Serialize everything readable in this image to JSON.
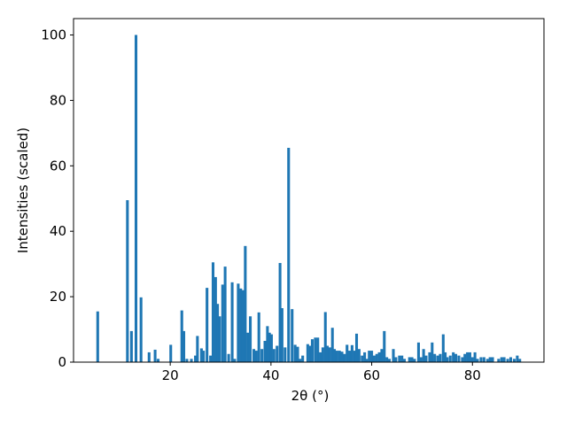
{
  "chart_data": {
    "type": "bar",
    "xlabel": "2θ (°)",
    "ylabel": "Intensities (scaled)",
    "color": "#1f77b4",
    "x": [
      5.6,
      11.5,
      12.3,
      13.2,
      14.2,
      15.8,
      17,
      17.6,
      20.1,
      22.3,
      22.7,
      23.3,
      24.2,
      25,
      25.4,
      26.2,
      26.6,
      27.3,
      28,
      28.5,
      29,
      29.4,
      29.8,
      30.4,
      30.9,
      31.6,
      32.3,
      32.8,
      33.5,
      34,
      34.4,
      34.9,
      35.4,
      35.9,
      36.6,
      37.1,
      37.6,
      38.2,
      38.8,
      39.3,
      39.7,
      40.1,
      40.6,
      41.2,
      41.8,
      42.2,
      42.8,
      43.5,
      44.2,
      44.8,
      45.3,
      45.8,
      46.3,
      47.3,
      47.8,
      48.2,
      48.8,
      49.3,
      49.8,
      50.3,
      50.8,
      51.2,
      51.7,
      52.2,
      52.6,
      53.1,
      53.6,
      54.1,
      54.6,
      55.1,
      55.6,
      56.1,
      56.6,
      57,
      57.5,
      58.1,
      58.6,
      59,
      59.5,
      60,
      60.5,
      61,
      61.5,
      62,
      62.5,
      63,
      63.5,
      64.3,
      64.8,
      65.5,
      66,
      66.5,
      67.5,
      68,
      68.5,
      69.3,
      69.8,
      70.3,
      70.8,
      71.5,
      72,
      72.5,
      73.1,
      73.6,
      74.2,
      74.6,
      75,
      75.6,
      76.2,
      76.7,
      77.3,
      78,
      78.5,
      79,
      79.5,
      80,
      80.5,
      81,
      81.7,
      82.3,
      83,
      83.5,
      84,
      85.2,
      85.8,
      86.3,
      87,
      87.6,
      88.3,
      88.9,
      89.4
    ],
    "values": [
      15.5,
      49.5,
      9.5,
      100,
      19.8,
      3,
      3.8,
      1,
      5.3,
      15.8,
      9.5,
      1,
      1,
      2,
      8,
      4.2,
      3.5,
      22.7,
      2,
      30.5,
      26,
      17.8,
      14,
      23.7,
      29.2,
      2.5,
      24.4,
      1,
      24,
      22.5,
      22,
      35.5,
      9,
      14,
      4,
      3.5,
      15.2,
      4,
      6.5,
      11,
      9,
      8.5,
      4,
      5,
      30.3,
      16.5,
      4.5,
      65.5,
      16.2,
      5.3,
      4.7,
      1,
      2,
      5.5,
      5,
      7,
      7.5,
      7.5,
      3,
      4.5,
      15.3,
      5,
      4.5,
      10.5,
      4,
      3.5,
      3.5,
      3.2,
      2.5,
      5.3,
      3.5,
      5.2,
      3.5,
      8.7,
      4,
      2,
      3,
      1,
      3.5,
      3.5,
      2,
      2.5,
      3,
      4,
      9.5,
      1.5,
      1,
      4,
      1.5,
      2,
      2,
      1,
      1.5,
      1.5,
      1,
      6,
      1.5,
      4,
      2,
      3,
      6,
      2.5,
      2,
      2.5,
      8.5,
      3,
      1.5,
      2,
      3,
      2.5,
      2,
      1.5,
      2.5,
      3,
      3,
      1.5,
      3,
      1,
      1.5,
      1.5,
      1,
      1.5,
      1.5,
      1,
      1.5,
      1.5,
      1,
      1.5,
      1,
      2,
      1
    ],
    "xlim": [
      0.8,
      94.2
    ],
    "ylim": [
      0,
      105
    ],
    "xticks": [
      20,
      40,
      60,
      80
    ],
    "yticks": [
      0,
      20,
      40,
      60,
      80,
      100
    ]
  }
}
